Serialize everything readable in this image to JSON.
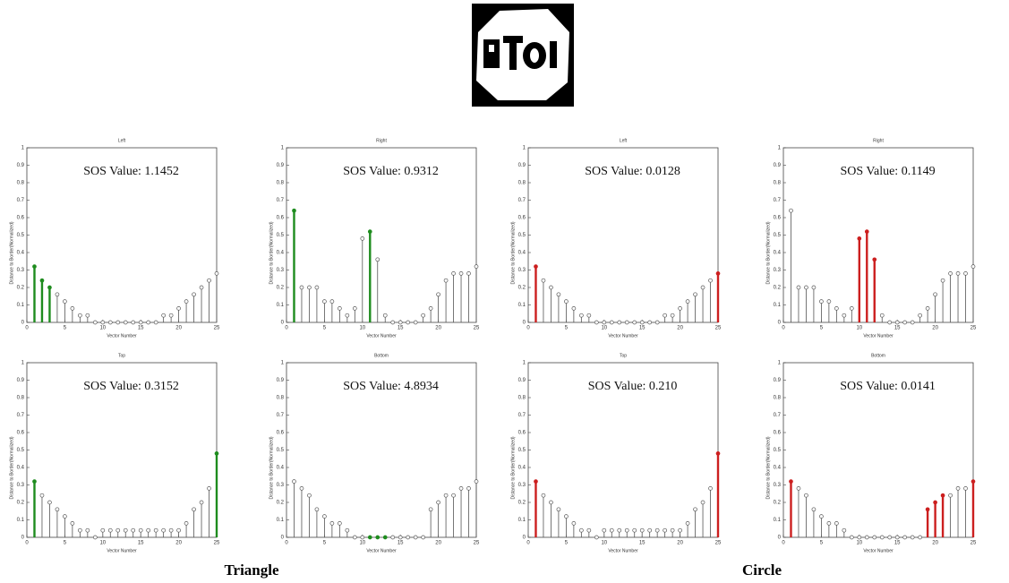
{
  "chart_data": [
    {
      "type": "stem",
      "title": "Left",
      "annotation": "SOS Value: 1.1452",
      "xlabel": "Vector Number",
      "ylabel": "Distance to Border(Normalized)",
      "x": [
        1,
        2,
        3,
        4,
        5,
        6,
        7,
        8,
        9,
        10,
        11,
        12,
        13,
        14,
        15,
        16,
        17,
        18,
        19,
        20,
        21,
        22,
        23,
        24,
        25
      ],
      "values": [
        0.32,
        0.24,
        0.2,
        0.16,
        0.12,
        0.08,
        0.04,
        0.04,
        0,
        0,
        0,
        0,
        0,
        0,
        0,
        0,
        0,
        0.04,
        0.04,
        0.08,
        0.12,
        0.16,
        0.2,
        0.24,
        0.28
      ],
      "color": "#555555",
      "highlight_color": "#1e8c1e",
      "highlight_x": [
        1,
        2,
        3
      ],
      "xlim": [
        0,
        25
      ],
      "xticks": [
        0,
        5,
        10,
        15,
        20,
        25
      ],
      "ylim": [
        0,
        1
      ],
      "yticks": [
        0,
        0.1,
        0.2,
        0.3,
        0.4,
        0.5,
        0.6,
        0.7,
        0.8,
        0.9,
        1
      ]
    },
    {
      "type": "stem",
      "title": "Right",
      "annotation": "SOS Value: 0.9312",
      "xlabel": "Vector Number",
      "ylabel": "Distance to Border(Normalized)",
      "x": [
        1,
        2,
        3,
        4,
        5,
        6,
        7,
        8,
        9,
        10,
        11,
        12,
        13,
        14,
        15,
        16,
        17,
        18,
        19,
        20,
        21,
        22,
        23,
        24,
        25
      ],
      "values": [
        0.64,
        0.2,
        0.2,
        0.2,
        0.12,
        0.12,
        0.08,
        0.04,
        0.08,
        0.48,
        0.52,
        0.36,
        0.04,
        0,
        0,
        0,
        0,
        0.04,
        0.08,
        0.16,
        0.24,
        0.28,
        0.28,
        0.28,
        0.32
      ],
      "color": "#555555",
      "highlight_color": "#1e8c1e",
      "highlight_x": [
        1,
        11
      ],
      "xlim": [
        0,
        25
      ],
      "xticks": [
        0,
        5,
        10,
        15,
        20,
        25
      ],
      "ylim": [
        0,
        1
      ],
      "yticks": [
        0,
        0.1,
        0.2,
        0.3,
        0.4,
        0.5,
        0.6,
        0.7,
        0.8,
        0.9,
        1
      ]
    },
    {
      "type": "stem",
      "title": "Left",
      "annotation": "SOS Value: 0.0128",
      "xlabel": "Vector Number",
      "ylabel": "Distance to Border(Normalized)",
      "x": [
        1,
        2,
        3,
        4,
        5,
        6,
        7,
        8,
        9,
        10,
        11,
        12,
        13,
        14,
        15,
        16,
        17,
        18,
        19,
        20,
        21,
        22,
        23,
        24,
        25
      ],
      "values": [
        0.32,
        0.24,
        0.2,
        0.16,
        0.12,
        0.08,
        0.04,
        0.04,
        0,
        0,
        0,
        0,
        0,
        0,
        0,
        0,
        0,
        0.04,
        0.04,
        0.08,
        0.12,
        0.16,
        0.2,
        0.24,
        0.28
      ],
      "color": "#555555",
      "highlight_color": "#cc1f1f",
      "highlight_x": [
        1,
        25
      ],
      "xlim": [
        0,
        25
      ],
      "xticks": [
        0,
        5,
        10,
        15,
        20,
        25
      ],
      "ylim": [
        0,
        1
      ],
      "yticks": [
        0,
        0.1,
        0.2,
        0.3,
        0.4,
        0.5,
        0.6,
        0.7,
        0.8,
        0.9,
        1
      ]
    },
    {
      "type": "stem",
      "title": "Right",
      "annotation": "SOS Value: 0.1149",
      "xlabel": "Vector Number",
      "ylabel": "Distance to Border(Normalized)",
      "x": [
        1,
        2,
        3,
        4,
        5,
        6,
        7,
        8,
        9,
        10,
        11,
        12,
        13,
        14,
        15,
        16,
        17,
        18,
        19,
        20,
        21,
        22,
        23,
        24,
        25
      ],
      "values": [
        0.64,
        0.2,
        0.2,
        0.2,
        0.12,
        0.12,
        0.08,
        0.04,
        0.08,
        0.48,
        0.52,
        0.36,
        0.04,
        0,
        0,
        0,
        0,
        0.04,
        0.08,
        0.16,
        0.24,
        0.28,
        0.28,
        0.28,
        0.32
      ],
      "color": "#555555",
      "highlight_color": "#cc1f1f",
      "highlight_x": [
        10,
        11,
        12
      ],
      "xlim": [
        0,
        25
      ],
      "xticks": [
        0,
        5,
        10,
        15,
        20,
        25
      ],
      "ylim": [
        0,
        1
      ],
      "yticks": [
        0,
        0.1,
        0.2,
        0.3,
        0.4,
        0.5,
        0.6,
        0.7,
        0.8,
        0.9,
        1
      ]
    },
    {
      "type": "stem",
      "title": "Top",
      "annotation": "SOS Value: 0.3152",
      "xlabel": "Vector Number",
      "ylabel": "Distance to Border(Normalized)",
      "x": [
        1,
        2,
        3,
        4,
        5,
        6,
        7,
        8,
        9,
        10,
        11,
        12,
        13,
        14,
        15,
        16,
        17,
        18,
        19,
        20,
        21,
        22,
        23,
        24,
        25
      ],
      "values": [
        0.32,
        0.24,
        0.2,
        0.16,
        0.12,
        0.08,
        0.04,
        0.04,
        0,
        0.04,
        0.04,
        0.04,
        0.04,
        0.04,
        0.04,
        0.04,
        0.04,
        0.04,
        0.04,
        0.04,
        0.08,
        0.16,
        0.2,
        0.28,
        0.48
      ],
      "color": "#555555",
      "highlight_color": "#1e8c1e",
      "highlight_x": [
        1,
        25
      ],
      "xlim": [
        0,
        25
      ],
      "xticks": [
        0,
        5,
        10,
        15,
        20,
        25
      ],
      "ylim": [
        0,
        1
      ],
      "yticks": [
        0,
        0.1,
        0.2,
        0.3,
        0.4,
        0.5,
        0.6,
        0.7,
        0.8,
        0.9,
        1
      ]
    },
    {
      "type": "stem",
      "title": "Bottom",
      "annotation": "SOS Value: 4.8934",
      "xlabel": "Vector Number",
      "ylabel": "Distance to Border(Normalized)",
      "x": [
        1,
        2,
        3,
        4,
        5,
        6,
        7,
        8,
        9,
        10,
        11,
        12,
        13,
        14,
        15,
        16,
        17,
        18,
        19,
        20,
        21,
        22,
        23,
        24,
        25
      ],
      "values": [
        0.32,
        0.28,
        0.24,
        0.16,
        0.12,
        0.08,
        0.08,
        0.04,
        0,
        0,
        0,
        0,
        0,
        0,
        0,
        0,
        0,
        0,
        0.16,
        0.2,
        0.24,
        0.24,
        0.28,
        0.28,
        0.32
      ],
      "color": "#555555",
      "highlight_color": "#1e8c1e",
      "highlight_x": [
        11,
        12,
        13
      ],
      "xlim": [
        0,
        25
      ],
      "xticks": [
        0,
        5,
        10,
        15,
        20,
        25
      ],
      "ylim": [
        0,
        1
      ],
      "yticks": [
        0,
        0.1,
        0.2,
        0.3,
        0.4,
        0.5,
        0.6,
        0.7,
        0.8,
        0.9,
        1
      ]
    },
    {
      "type": "stem",
      "title": "Top",
      "annotation": "SOS Value: 0.210",
      "xlabel": "Vector Number",
      "ylabel": "Distance to Border(Normalized)",
      "x": [
        1,
        2,
        3,
        4,
        5,
        6,
        7,
        8,
        9,
        10,
        11,
        12,
        13,
        14,
        15,
        16,
        17,
        18,
        19,
        20,
        21,
        22,
        23,
        24,
        25
      ],
      "values": [
        0.32,
        0.24,
        0.2,
        0.16,
        0.12,
        0.08,
        0.04,
        0.04,
        0,
        0.04,
        0.04,
        0.04,
        0.04,
        0.04,
        0.04,
        0.04,
        0.04,
        0.04,
        0.04,
        0.04,
        0.08,
        0.16,
        0.2,
        0.28,
        0.48
      ],
      "color": "#555555",
      "highlight_color": "#cc1f1f",
      "highlight_x": [
        1,
        25
      ],
      "xlim": [
        0,
        25
      ],
      "xticks": [
        0,
        5,
        10,
        15,
        20,
        25
      ],
      "ylim": [
        0,
        1
      ],
      "yticks": [
        0,
        0.1,
        0.2,
        0.3,
        0.4,
        0.5,
        0.6,
        0.7,
        0.8,
        0.9,
        1
      ]
    },
    {
      "type": "stem",
      "title": "Bottom",
      "annotation": "SOS Value: 0.0141",
      "xlabel": "Vector Number",
      "ylabel": "Distance to Border(Normalized)",
      "x": [
        1,
        2,
        3,
        4,
        5,
        6,
        7,
        8,
        9,
        10,
        11,
        12,
        13,
        14,
        15,
        16,
        17,
        18,
        19,
        20,
        21,
        22,
        23,
        24,
        25
      ],
      "values": [
        0.32,
        0.28,
        0.24,
        0.16,
        0.12,
        0.08,
        0.08,
        0.04,
        0,
        0,
        0,
        0,
        0,
        0,
        0,
        0,
        0,
        0,
        0.16,
        0.2,
        0.24,
        0.24,
        0.28,
        0.28,
        0.32
      ],
      "color": "#555555",
      "highlight_color": "#cc1f1f",
      "highlight_x": [
        1,
        19,
        20,
        21,
        25
      ],
      "xlim": [
        0,
        25
      ],
      "xticks": [
        0,
        5,
        10,
        15,
        20,
        25
      ],
      "ylim": [
        0,
        1
      ],
      "yticks": [
        0,
        0.1,
        0.2,
        0.3,
        0.4,
        0.5,
        0.6,
        0.7,
        0.8,
        0.9,
        1
      ]
    }
  ],
  "captions": [
    "Triangle",
    "Circle"
  ]
}
